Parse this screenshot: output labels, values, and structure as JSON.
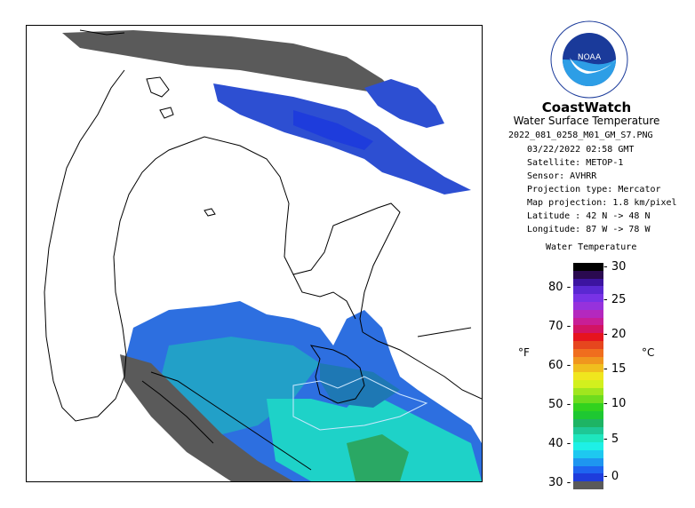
{
  "title": "CoastWatch",
  "subtitle": "Water Surface Temperature",
  "metadata": {
    "filename": "2022_081_0258_M01_GM_S7.PNG",
    "datetime": "03/22/2022   02:58 GMT",
    "satellite": "Satellite: METOP-1",
    "sensor": "Sensor: AVHRR",
    "projection_type": "Projection type:  Mercator",
    "map_projection": "Map projection: 1.8 km/pixel",
    "latitude": "Latitude : 42 N -> 48 N",
    "longitude": "Longitude: 87 W -> 78 W"
  },
  "legend": {
    "title": "Water Temperature",
    "unit_f": "°F",
    "unit_c": "°C",
    "fahrenheit_ticks": [
      "80",
      "70",
      "60",
      "50",
      "40",
      "30"
    ],
    "celsius_ticks": [
      "30",
      "25",
      "20",
      "15",
      "10",
      "5",
      "0"
    ],
    "colors": [
      "#000000",
      "#2a0a50",
      "#3c14a0",
      "#5a28d2",
      "#7832e6",
      "#9632dc",
      "#b428be",
      "#c81e96",
      "#d21464",
      "#e6141e",
      "#e6461e",
      "#f06e1e",
      "#f0961e",
      "#f0be1e",
      "#f0e61e",
      "#d2f01e",
      "#a0e61e",
      "#6edc1e",
      "#32d21e",
      "#1ec832",
      "#1eb464",
      "#1ec896",
      "#1ee6be",
      "#1ef0e6",
      "#1ec8f0",
      "#1e96f0",
      "#1e64f0",
      "#1e3cdc",
      "#5a5a5a"
    ]
  },
  "logo_text": "NOAA"
}
